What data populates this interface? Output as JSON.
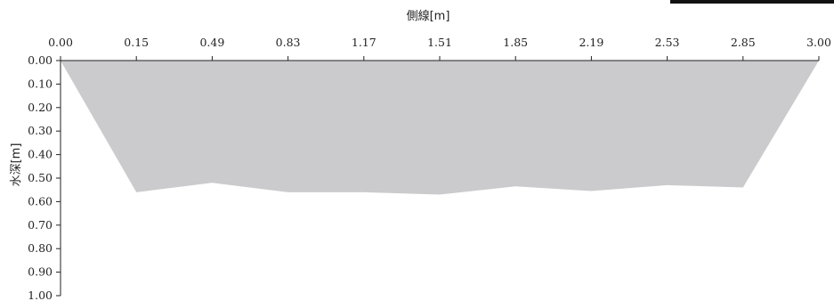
{
  "chart_data": {
    "type": "area",
    "xlabel": "側線[m]",
    "ylabel": "水深[m]",
    "x_tick_labels": [
      "0.00",
      "0.15",
      "0.49",
      "0.83",
      "1.17",
      "1.51",
      "1.85",
      "2.19",
      "2.53",
      "2.85",
      "3.00"
    ],
    "y_tick_labels": [
      "0.00",
      "0.10",
      "0.20",
      "0.30",
      "0.40",
      "0.50",
      "0.60",
      "0.70",
      "0.80",
      "0.90",
      "1.00"
    ],
    "y_ticks": [
      0,
      0.1,
      0.2,
      0.3,
      0.4,
      0.5,
      0.6,
      0.7,
      0.8,
      0.9,
      1.0
    ],
    "ylim": [
      0,
      1.0
    ],
    "y_inverted": true,
    "x_axis_position": "top",
    "fill_color": "#cbcbcd",
    "series": [
      {
        "depth": [
          0.0,
          0.56,
          0.52,
          0.56,
          0.56,
          0.57,
          0.535,
          0.555,
          0.53,
          0.54,
          0.0
        ]
      }
    ]
  }
}
